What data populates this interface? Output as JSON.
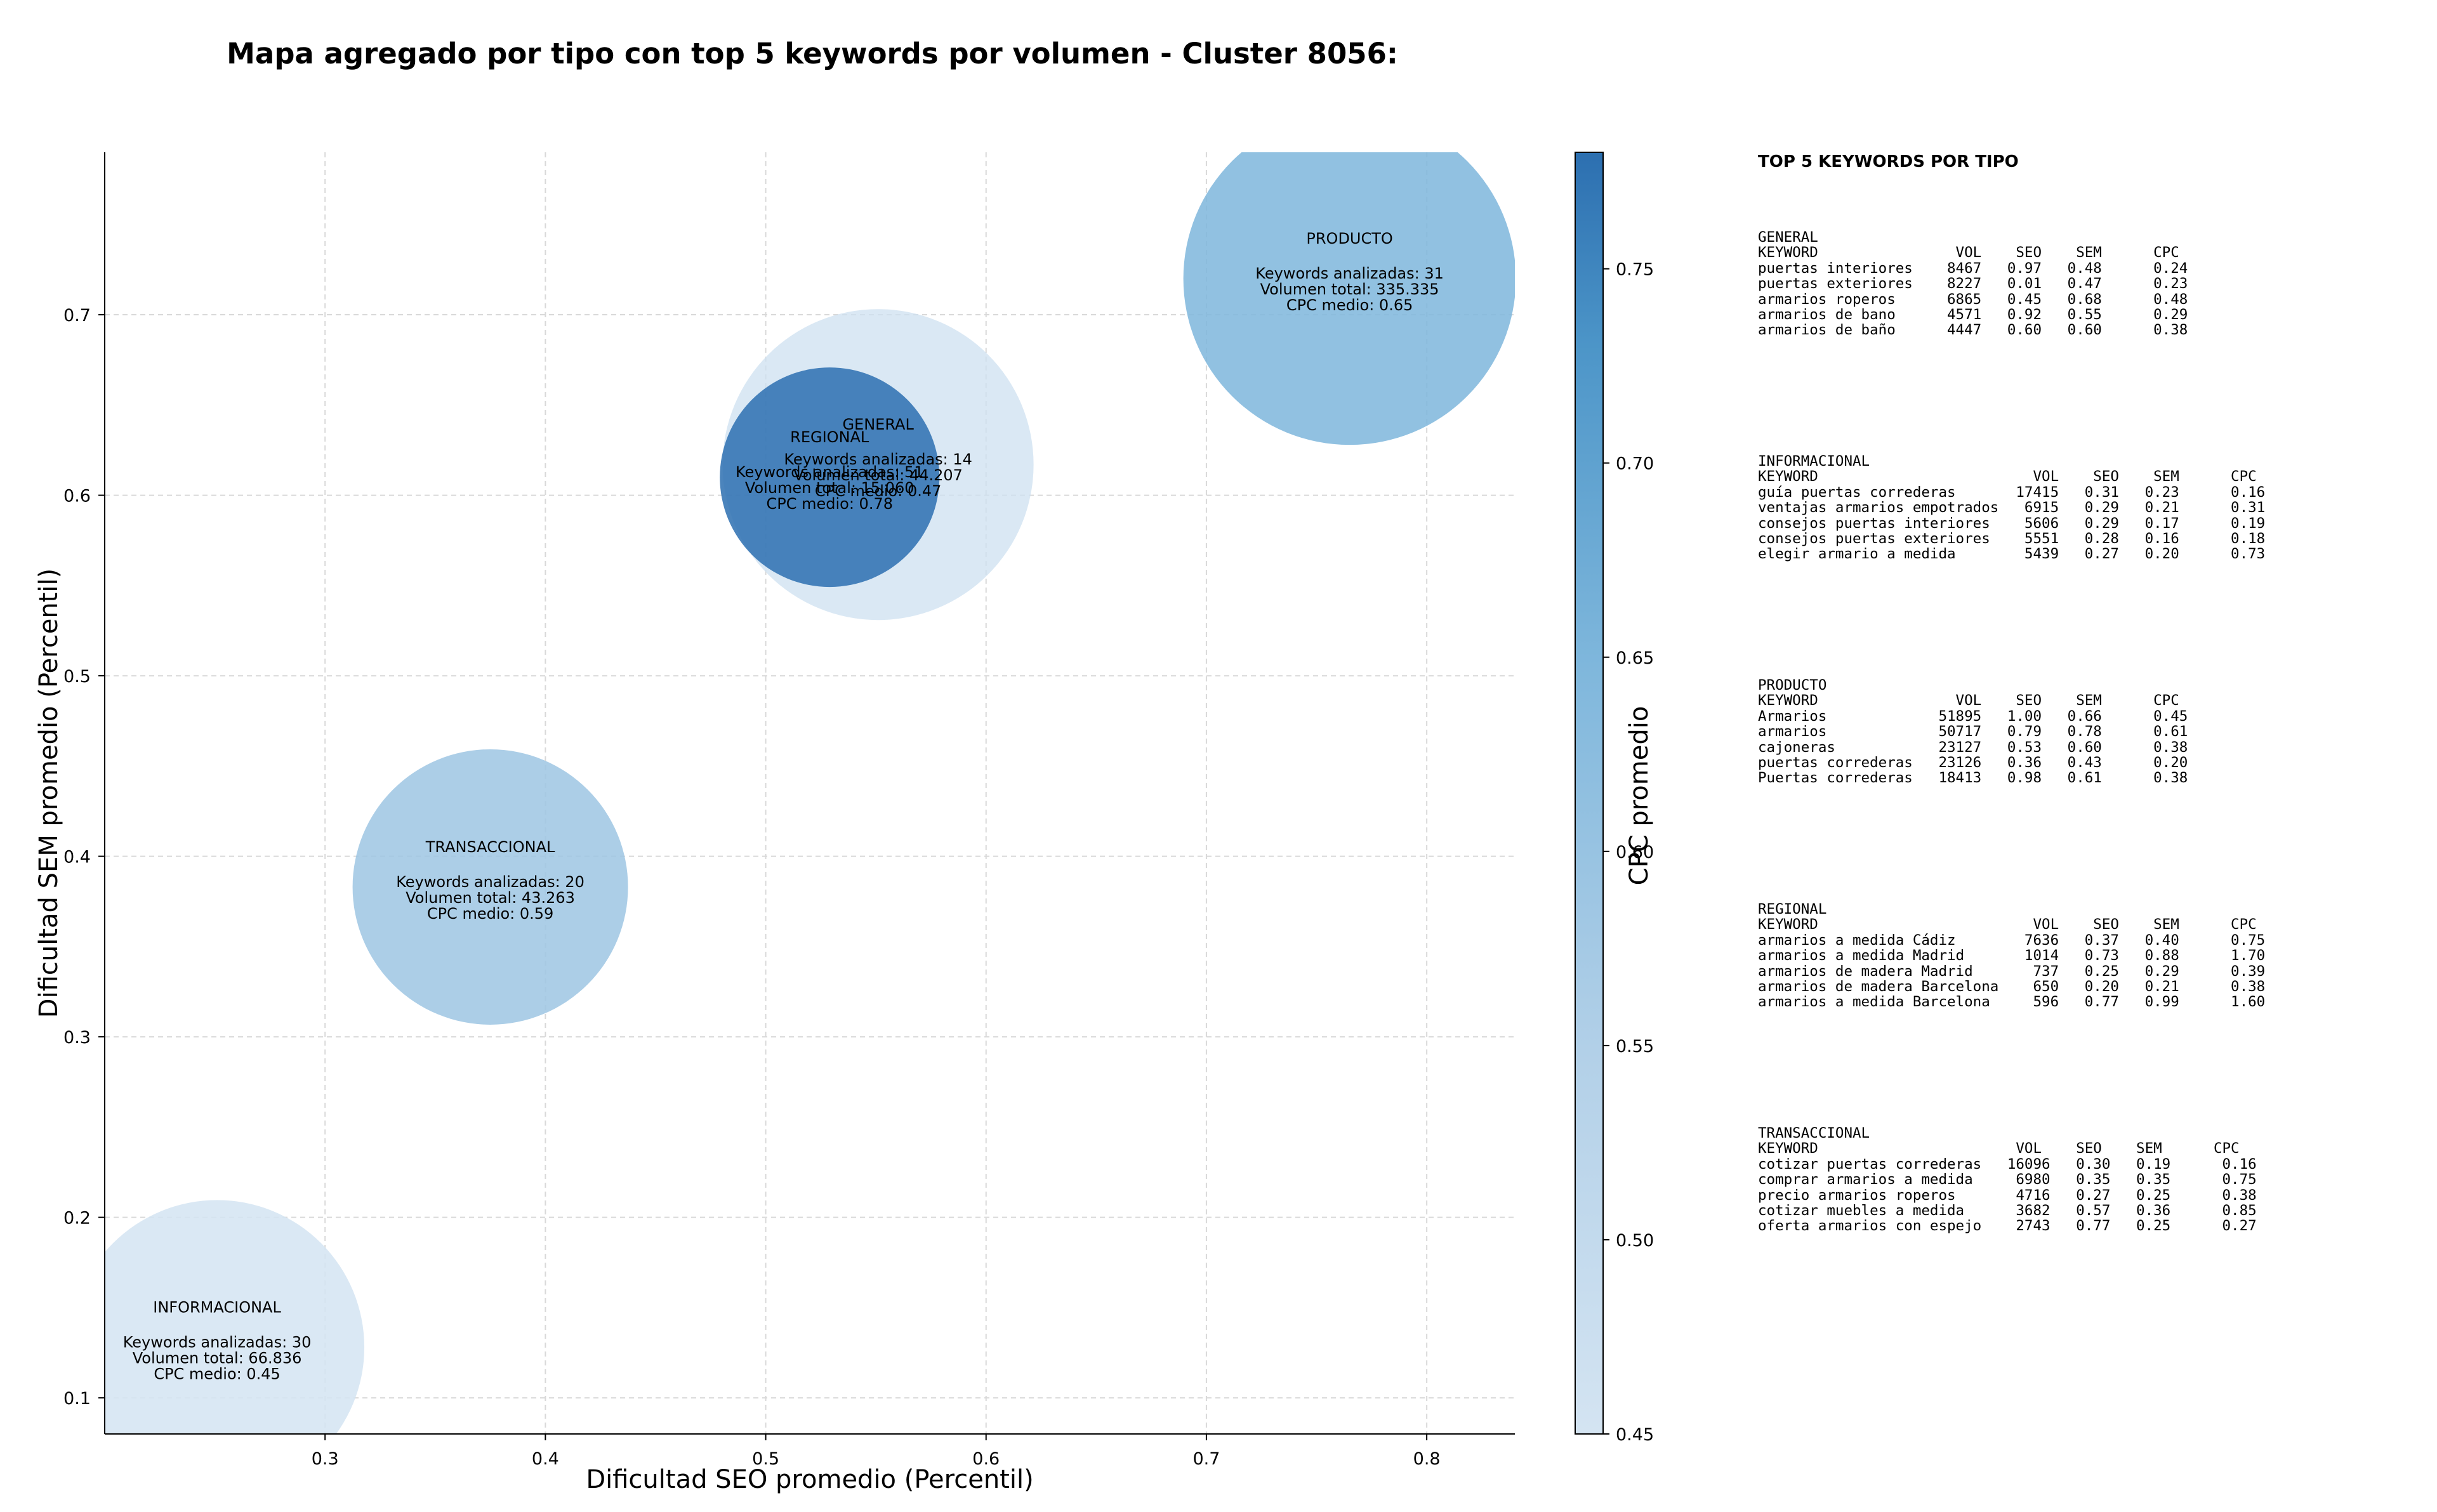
{
  "title": "Mapa agregado por tipo con top 5 keywords por volumen - Cluster 8056:",
  "chart_data": {
    "type": "scatter",
    "xlabel": "Dificultad SEO promedio (Percentil)",
    "ylabel": "Dificultad SEM promedio (Percentil)",
    "xlim": [
      0.2,
      0.84
    ],
    "ylim": [
      0.08,
      0.79
    ],
    "xticks": [
      "0.3",
      "0.4",
      "0.5",
      "0.6",
      "0.7",
      "0.8"
    ],
    "yticks": [
      "0.1",
      "0.2",
      "0.3",
      "0.4",
      "0.5",
      "0.6",
      "0.7"
    ],
    "grid": true,
    "colorbar": {
      "label": "CPC promedio",
      "range": [
        0.45,
        0.78
      ],
      "ticks": [
        "0.45",
        "0.50",
        "0.55",
        "0.60",
        "0.65",
        "0.70",
        "0.75"
      ]
    },
    "points": [
      {
        "name": "GENERAL",
        "x": 0.551,
        "y": 0.617,
        "keywords": "Keywords analizadas: 14",
        "volume": "Volumen total: 44.207",
        "cpc_text": "CPC medio: 0.47",
        "cpc": 0.47
      },
      {
        "name": "REGIONAL",
        "x": 0.529,
        "y": 0.61,
        "keywords": "Keywords analizadas: 51",
        "volume": "Volumen total: 15.060",
        "cpc_text": "CPC medio: 0.78",
        "cpc": 0.78
      },
      {
        "name": "PRODUCTO",
        "x": 0.765,
        "y": 0.72,
        "keywords": "Keywords analizadas: 31",
        "volume": "Volumen total: 335.335",
        "cpc_text": "CPC medio: 0.65",
        "cpc": 0.65
      },
      {
        "name": "TRANSACCIONAL",
        "x": 0.375,
        "y": 0.383,
        "keywords": "Keywords analizadas: 20",
        "volume": "Volumen total: 43.263",
        "cpc_text": "CPC medio: 0.59",
        "cpc": 0.59
      },
      {
        "name": "INFORMACIONAL",
        "x": 0.251,
        "y": 0.128,
        "keywords": "Keywords analizadas: 30",
        "volume": "Volumen total: 66.836",
        "cpc_text": "CPC medio: 0.45",
        "cpc": 0.45
      }
    ]
  },
  "panel": {
    "heading": "TOP 5 KEYWORDS POR TIPO",
    "tables": [
      {
        "type": "GENERAL",
        "header": "KEYWORD                VOL    SEO    SEM      CPC",
        "rows": [
          "puertas interiores    8467   0.97   0.48      0.24",
          "puertas exteriores    8227   0.01   0.47      0.23",
          "armarios roperos      6865   0.45   0.68      0.48",
          "armarios de bano      4571   0.92   0.55      0.29",
          "armarios de baño      4447   0.60   0.60      0.38"
        ]
      },
      {
        "type": "INFORMACIONAL",
        "header": "KEYWORD                         VOL    SEO    SEM      CPC",
        "rows": [
          "guía puertas correderas       17415   0.31   0.23      0.16",
          "ventajas armarios empotrados   6915   0.29   0.21      0.31",
          "consejos puertas interiores    5606   0.29   0.17      0.19",
          "consejos puertas exteriores    5551   0.28   0.16      0.18",
          "elegir armario a medida        5439   0.27   0.20      0.73"
        ]
      },
      {
        "type": "PRODUCTO",
        "header": "KEYWORD                VOL    SEO    SEM      CPC",
        "rows": [
          "Armarios             51895   1.00   0.66      0.45",
          "armarios             50717   0.79   0.78      0.61",
          "cajoneras            23127   0.53   0.60      0.38",
          "puertas correderas   23126   0.36   0.43      0.20",
          "Puertas correderas   18413   0.98   0.61      0.38"
        ]
      },
      {
        "type": "REGIONAL",
        "header": "KEYWORD                         VOL    SEO    SEM      CPC",
        "rows": [
          "armarios a medida Cádiz        7636   0.37   0.40      0.75",
          "armarios a medida Madrid       1014   0.73   0.88      1.70",
          "armarios de madera Madrid       737   0.25   0.29      0.39",
          "armarios de madera Barcelona    650   0.20   0.21      0.38",
          "armarios a medida Barcelona     596   0.77   0.99      1.60"
        ]
      },
      {
        "type": "TRANSACCIONAL",
        "header": "KEYWORD                       VOL    SEO    SEM      CPC",
        "rows": [
          "cotizar puertas correderas   16096   0.30   0.19      0.16",
          "comprar armarios a medida     6980   0.35   0.35      0.75",
          "precio armarios roperos       4716   0.27   0.25      0.38",
          "cotizar muebles a medida      3682   0.57   0.36      0.85",
          "oferta armarios con espejo    2743   0.77   0.25      0.27"
        ]
      }
    ]
  }
}
